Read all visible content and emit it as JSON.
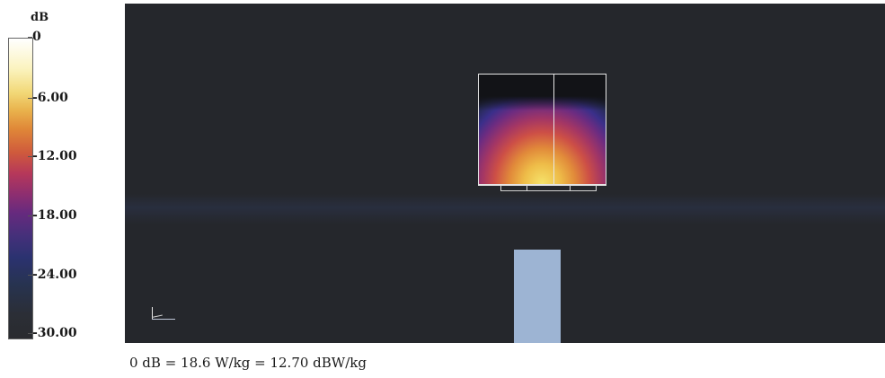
{
  "legend": {
    "unit": "dB",
    "ticks": [
      {
        "label": "0",
        "value": 0
      },
      {
        "label": "-6.00",
        "value": -6
      },
      {
        "label": "-12.00",
        "value": -12
      },
      {
        "label": "-18.00",
        "value": -18
      },
      {
        "label": "-24.00",
        "value": -24
      },
      {
        "label": "-30.00",
        "value": -30
      }
    ],
    "range": [
      -30,
      0
    ]
  },
  "colors": {
    "background": "#25272c",
    "antenna": "#9db4d3",
    "outline": "#e6e6e6"
  },
  "caption": "0 dB = 18.6 W/kg = 12.70 dBW/kg"
}
